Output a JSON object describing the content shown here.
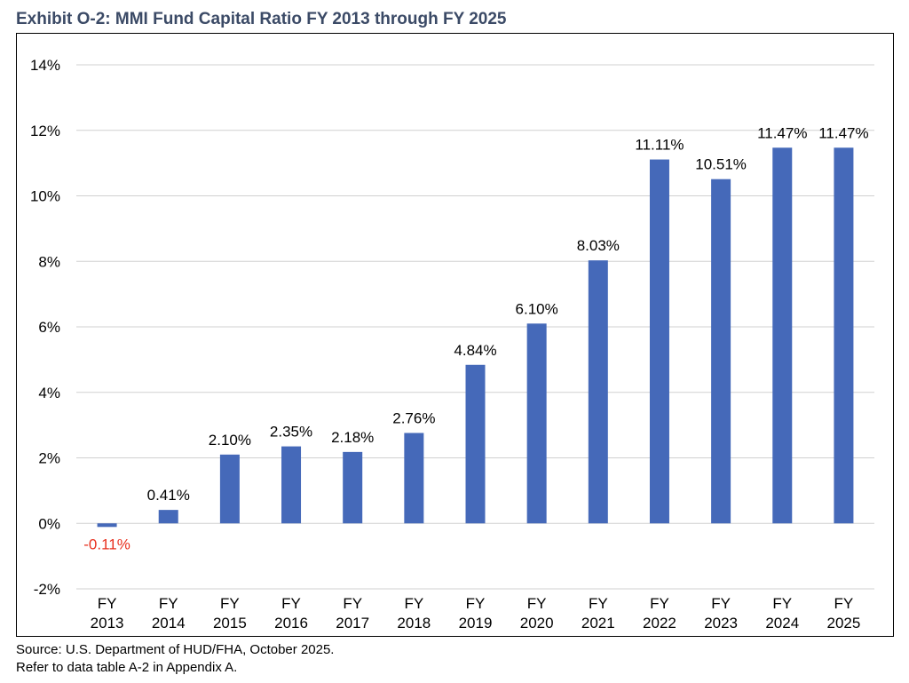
{
  "chart_data": {
    "type": "bar",
    "title": "Exhibit O-2: MMI Fund Capital Ratio FY 2013 through FY 2025",
    "categories": [
      "FY 2013",
      "FY 2014",
      "FY 2015",
      "FY 2016",
      "FY 2017",
      "FY 2018",
      "FY 2019",
      "FY 2020",
      "FY 2021",
      "FY 2022",
      "FY 2023",
      "FY 2024",
      "FY 2025"
    ],
    "values": [
      -0.11,
      0.41,
      2.1,
      2.35,
      2.18,
      2.76,
      4.84,
      6.1,
      8.03,
      11.11,
      10.51,
      11.47,
      11.47
    ],
    "data_labels": [
      "-0.11%",
      "0.41%",
      "2.10%",
      "2.35%",
      "2.18%",
      "2.76%",
      "4.84%",
      "6.10%",
      "8.03%",
      "11.11%",
      "10.51%",
      "11.47%",
      "11.47%"
    ],
    "ylim": [
      -2,
      14
    ],
    "y_ticks": [
      -2,
      0,
      2,
      4,
      6,
      8,
      10,
      12,
      14
    ],
    "y_tick_labels": [
      "-2%",
      "0%",
      "2%",
      "4%",
      "6%",
      "8%",
      "10%",
      "12%",
      "14%"
    ],
    "xlabel": "",
    "ylabel": "",
    "grid": true,
    "legend": "none",
    "bar_color": "#4569b9",
    "negative_label_color": "#e8311f",
    "gridline_color": "#d0d0d0"
  },
  "footer": {
    "source": "Source: U.S. Department of HUD/FHA, October 2025.",
    "note": "Refer to data table A-2 in Appendix A."
  }
}
